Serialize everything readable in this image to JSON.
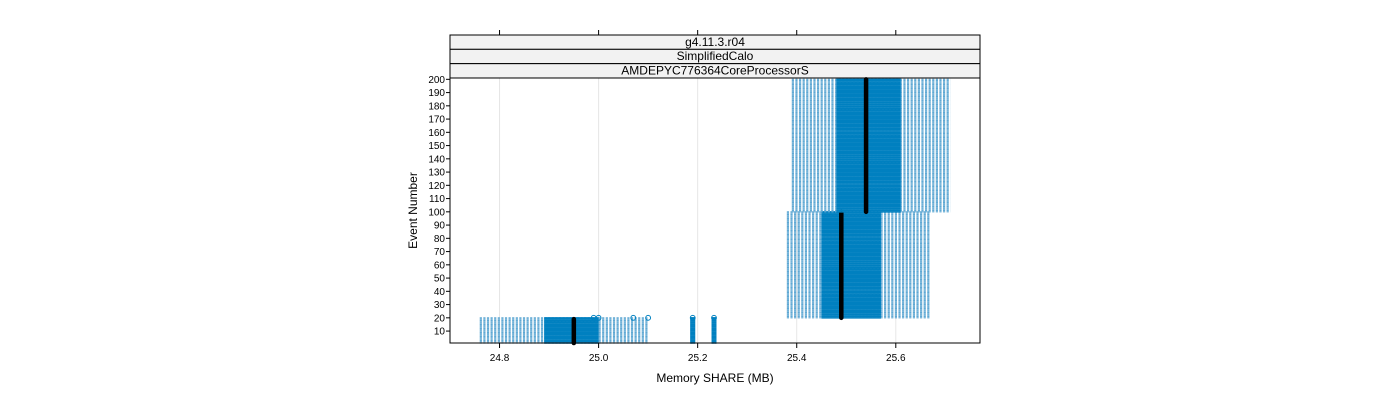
{
  "chart_data": {
    "type": "bwplot",
    "strips": [
      "g4.11.3.r04",
      "SimplifiedCalo",
      "AMDEPYC776364CoreProcessorS"
    ],
    "xlabel": "Memory SHARE (MB)",
    "ylabel": "Event Number",
    "xlim": [
      24.7,
      25.77
    ],
    "ylim": [
      1,
      201
    ],
    "x_ticks": [
      24.8,
      25.0,
      25.2,
      25.4,
      25.6
    ],
    "x_tick_labels": [
      "24.8",
      "25.0",
      "25.2",
      "25.4",
      "25.6"
    ],
    "y_ticks": [
      10,
      20,
      30,
      40,
      50,
      60,
      70,
      80,
      90,
      100,
      110,
      120,
      130,
      140,
      150,
      160,
      170,
      180,
      190,
      200
    ],
    "grid": true,
    "colors": {
      "box": "#0080C0",
      "whisker": "#5fa8d3",
      "median": "#000000"
    },
    "groups": [
      {
        "y_start": 1,
        "y_end": 20,
        "whisker_low": 24.76,
        "q1": 24.89,
        "median": 24.95,
        "q3": 25.0,
        "whisker_high": 25.1,
        "median_ymin": 1,
        "median_ymax": 19,
        "outliers": [
          24.99,
          25.0,
          25.07,
          25.1
        ]
      },
      {
        "y_start": 1,
        "y_end": 20,
        "whisker_low": 25.185,
        "q1": 25.185,
        "median": 25.19,
        "q3": 25.195,
        "whisker_high": 25.195,
        "median_ymin": 1,
        "median_ymax": 1,
        "outliers": [
          25.19
        ]
      },
      {
        "y_start": 1,
        "y_end": 20,
        "whisker_low": 25.228,
        "q1": 25.228,
        "median": 25.233,
        "q3": 25.238,
        "whisker_high": 25.238,
        "median_ymin": 1,
        "median_ymax": 1,
        "outliers": [
          25.233
        ]
      },
      {
        "y_start": 20,
        "y_end": 100,
        "whisker_low": 25.38,
        "q1": 25.45,
        "median": 25.49,
        "q3": 25.57,
        "whisker_high": 25.67,
        "median_ymin": 20,
        "median_ymax": 100,
        "outliers": []
      },
      {
        "y_start": 100,
        "y_end": 200,
        "whisker_low": 25.39,
        "q1": 25.48,
        "median": 25.54,
        "q3": 25.61,
        "whisker_high": 25.71,
        "median_ymin": 100,
        "median_ymax": 200,
        "outliers": []
      }
    ]
  }
}
